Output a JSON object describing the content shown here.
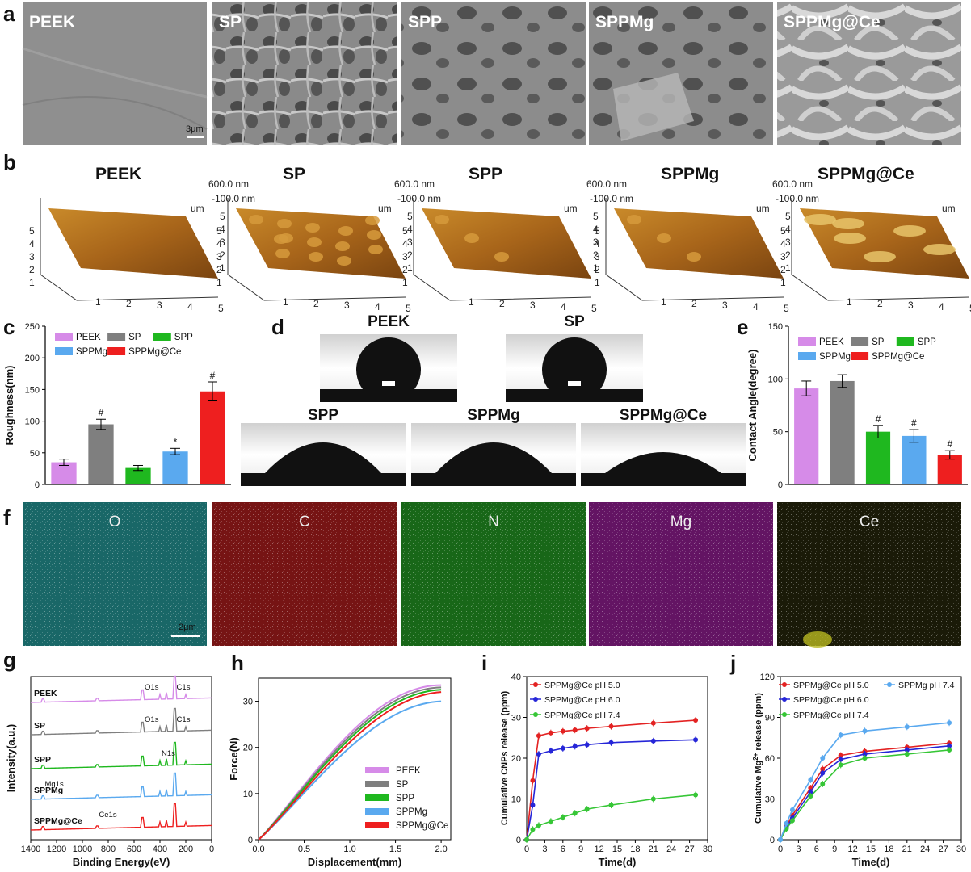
{
  "panel_letters": [
    "a",
    "b",
    "c",
    "d",
    "e",
    "f",
    "g",
    "h",
    "i",
    "j"
  ],
  "sem": {
    "labels": [
      "PEEK",
      "SP",
      "SPP",
      "SPPMg",
      "SPPMg@Ce"
    ],
    "scale_bar": "3μm"
  },
  "afm": {
    "titles": [
      "PEEK",
      "SP",
      "SPP",
      "SPPMg",
      "SPPMg@Ce"
    ],
    "z_top": "600.0 nm",
    "z_bottom": "-100.0 nm",
    "um": "um",
    "y_ticks": [
      "5",
      "4",
      "3",
      "2",
      "1"
    ],
    "x_ticks": [
      "1",
      "2",
      "3",
      "4",
      "5"
    ]
  },
  "contact": {
    "labels": [
      "PEEK",
      "SP",
      "SPP",
      "SPPMg",
      "SPPMg@Ce"
    ]
  },
  "eds": {
    "elements": [
      "O",
      "C",
      "N",
      "Mg",
      "Ce"
    ],
    "colors": [
      "#2ab8b8",
      "#d42020",
      "#28b828",
      "#b020b0",
      "#b8b820"
    ],
    "scale_bar": "2μm"
  },
  "colors": {
    "PEEK": "#d68be8",
    "SP": "#7f7f7f",
    "SPP": "#1fb81f",
    "SPPMg": "#5aa9ef",
    "SPPMg@Ce": "#ee1f1f"
  },
  "chart_data": [
    {
      "panel": "c",
      "type": "bar",
      "categories": [
        "PEEK",
        "SP",
        "SPP",
        "SPPMg",
        "SPPMg@Ce"
      ],
      "values": [
        35,
        95,
        26,
        52,
        147
      ],
      "errors": [
        5,
        8,
        4,
        5,
        15
      ],
      "significance": [
        "",
        "#",
        "",
        "*",
        "#"
      ],
      "ylabel": "Roughness(nm)",
      "ylim": [
        0,
        250
      ],
      "yticks": [
        "0",
        "50",
        "100",
        "150",
        "200",
        "250"
      ],
      "legend": [
        "PEEK",
        "SP",
        "SPP",
        "SPPMg",
        "SPPMg@Ce"
      ]
    },
    {
      "panel": "e",
      "type": "bar",
      "categories": [
        "PEEK",
        "SP",
        "SPP",
        "SPPMg",
        "SPPMg@Ce"
      ],
      "values": [
        91,
        98,
        50,
        46,
        28
      ],
      "errors": [
        7,
        6,
        6,
        6,
        4
      ],
      "significance": [
        "",
        "",
        "#",
        "#",
        "#"
      ],
      "ylabel": "Contact Angle(degree)",
      "ylim": [
        0,
        150
      ],
      "yticks": [
        "0",
        "50",
        "100",
        "150"
      ],
      "legend": [
        "PEEK",
        "SP",
        "SPP",
        "SPPMg",
        "SPPMg@Ce"
      ]
    },
    {
      "panel": "g",
      "type": "line",
      "xlabel": "Binding Energy(eV)",
      "ylabel": "Intensity(a.u.)",
      "xlim": [
        1400,
        0
      ],
      "xticks": [
        "1400",
        "1200",
        "1000",
        "800",
        "600",
        "400",
        "200",
        "0"
      ],
      "series": [
        {
          "name": "PEEK",
          "peaks": [
            {
              "label": "O1s",
              "at": 531
            },
            {
              "label": "C1s",
              "at": 284
            }
          ]
        },
        {
          "name": "SP",
          "peaks": [
            {
              "label": "O1s",
              "at": 531
            },
            {
              "label": "C1s",
              "at": 284
            }
          ]
        },
        {
          "name": "SPP",
          "peaks": [
            {
              "label": "N1s",
              "at": 400
            }
          ]
        },
        {
          "name": "SPPMg",
          "peaks": [
            {
              "label": "Mg1s",
              "at": 1303
            }
          ]
        },
        {
          "name": "SPPMg@Ce",
          "peaks": [
            {
              "label": "Ce1s",
              "at": 885
            }
          ]
        }
      ]
    },
    {
      "panel": "h",
      "type": "line",
      "xlabel": "Displacement(mm)",
      "ylabel": "Force(N)",
      "xlim": [
        0,
        2.0
      ],
      "ylim": [
        0,
        35
      ],
      "xticks": [
        "0.0",
        "0.5",
        "1.0",
        "1.5",
        "2.0"
      ],
      "yticks": [
        "0",
        "10",
        "20",
        "30"
      ],
      "series": [
        {
          "name": "PEEK",
          "final_force": 33.5
        },
        {
          "name": "SP",
          "final_force": 33.0
        },
        {
          "name": "SPP",
          "final_force": 32.5
        },
        {
          "name": "SPPMg",
          "final_force": 30.0
        },
        {
          "name": "SPPMg@Ce",
          "final_force": 32.0
        }
      ]
    },
    {
      "panel": "i",
      "type": "line",
      "xlabel": "Time(d)",
      "ylabel": "Cumulative CNPs release (ppm)",
      "xlim": [
        0,
        30
      ],
      "ylim": [
        0,
        40
      ],
      "xticks": [
        "0",
        "3",
        "6",
        "9",
        "12",
        "15",
        "18",
        "21",
        "24",
        "27",
        "30"
      ],
      "yticks": [
        "0",
        "10",
        "20",
        "30",
        "40"
      ],
      "x": [
        0,
        1,
        2,
        4,
        6,
        8,
        10,
        14,
        21,
        28
      ],
      "series": [
        {
          "name": "SPPMg@Ce pH 5.0",
          "color": "#e32222",
          "values": [
            0,
            14.5,
            25.5,
            26.2,
            26.6,
            26.9,
            27.3,
            27.8,
            28.6,
            29.3
          ]
        },
        {
          "name": "SPPMg@Ce pH 6.0",
          "color": "#2626d8",
          "values": [
            0,
            8.5,
            21,
            21.8,
            22.4,
            22.9,
            23.3,
            23.8,
            24.2,
            24.5
          ]
        },
        {
          "name": "SPPMg@Ce pH 7.4",
          "color": "#36c636",
          "values": [
            0,
            2.5,
            3.5,
            4.5,
            5.5,
            6.5,
            7.5,
            8.5,
            10,
            11
          ]
        }
      ]
    },
    {
      "panel": "j",
      "type": "line",
      "xlabel": "Time(d)",
      "ylabel": "Cumulative Mg2+ release (ppm)",
      "xlim": [
        0,
        30
      ],
      "ylim": [
        0,
        120
      ],
      "xticks": [
        "0",
        "3",
        "6",
        "9",
        "12",
        "15",
        "18",
        "21",
        "24",
        "27",
        "30"
      ],
      "yticks": [
        "0",
        "30",
        "60",
        "90",
        "120"
      ],
      "x": [
        0,
        1,
        2,
        5,
        7,
        10,
        14,
        21,
        28
      ],
      "series": [
        {
          "name": "SPPMg@Ce pH 5.0",
          "color": "#e32222",
          "values": [
            0,
            10,
            18,
            38,
            52,
            62,
            65,
            68,
            71
          ]
        },
        {
          "name": "SPPMg@Ce pH 6.0",
          "color": "#2626d8",
          "values": [
            0,
            9,
            16,
            35,
            49,
            59,
            63,
            66,
            69
          ]
        },
        {
          "name": "SPPMg@Ce pH 7.4",
          "color": "#36c636",
          "values": [
            0,
            8,
            14,
            32,
            41,
            55,
            60,
            63,
            66
          ]
        },
        {
          "name": "SPPMg pH 7.4",
          "color": "#5aa9ef",
          "values": [
            0,
            12,
            22,
            44,
            60,
            77,
            80,
            83,
            86
          ]
        }
      ]
    }
  ],
  "strings": {
    "j_ylabel_prefix": "Cumulative Mg",
    "j_ylabel_sup": "2+",
    "j_ylabel_suffix": " release (ppm)"
  }
}
